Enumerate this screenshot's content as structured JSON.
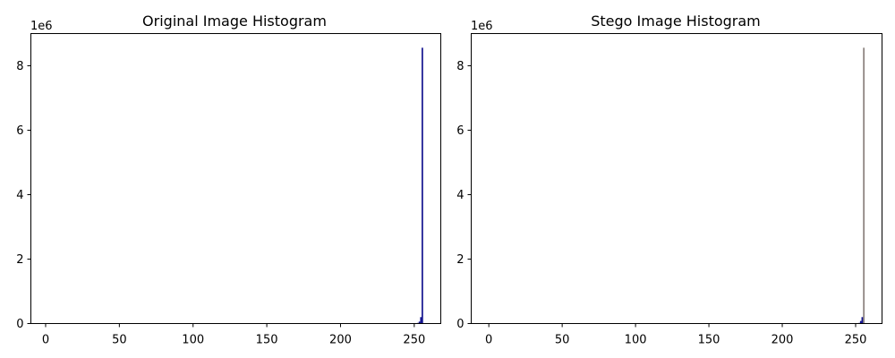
{
  "colors": {
    "original_bar": "#0d0d8c",
    "stego_bar": "#0d0d8c",
    "stego_tall_line": "#3a2a24",
    "axis": "#000000",
    "background": "#ffffff"
  },
  "chart_data": [
    {
      "type": "bar",
      "title": "Original Image Histogram",
      "xlabel": "",
      "ylabel": "",
      "xlim": [
        -10,
        268
      ],
      "ylim": [
        0,
        9000000
      ],
      "x_ticks": [
        0,
        50,
        100,
        150,
        200,
        250
      ],
      "y_ticks": [
        0,
        2,
        4,
        6,
        8
      ],
      "y_ticks_values": [
        0,
        2000000,
        4000000,
        6000000,
        8000000
      ],
      "y_offset_label": "1e6",
      "grid": false,
      "bins": [
        {
          "x": 252,
          "value": 20000
        },
        {
          "x": 253,
          "value": 60000
        },
        {
          "x": 254,
          "value": 200000
        },
        {
          "x": 255,
          "value": 8560000
        }
      ]
    },
    {
      "type": "bar",
      "title": "Stego Image Histogram",
      "xlabel": "",
      "ylabel": "",
      "xlim": [
        -12,
        268
      ],
      "ylim": [
        0,
        9000000
      ],
      "x_ticks": [
        0,
        50,
        100,
        150,
        200,
        250
      ],
      "y_ticks": [
        0,
        2,
        4,
        6,
        8
      ],
      "y_ticks_values": [
        0,
        2000000,
        4000000,
        6000000,
        8000000
      ],
      "y_offset_label": "1e6",
      "grid": false,
      "bins": [
        {
          "x": 252,
          "value": 20000
        },
        {
          "x": 253,
          "value": 80000
        },
        {
          "x": 254,
          "value": 200000
        },
        {
          "x": 255,
          "value": 8560000
        }
      ]
    }
  ]
}
